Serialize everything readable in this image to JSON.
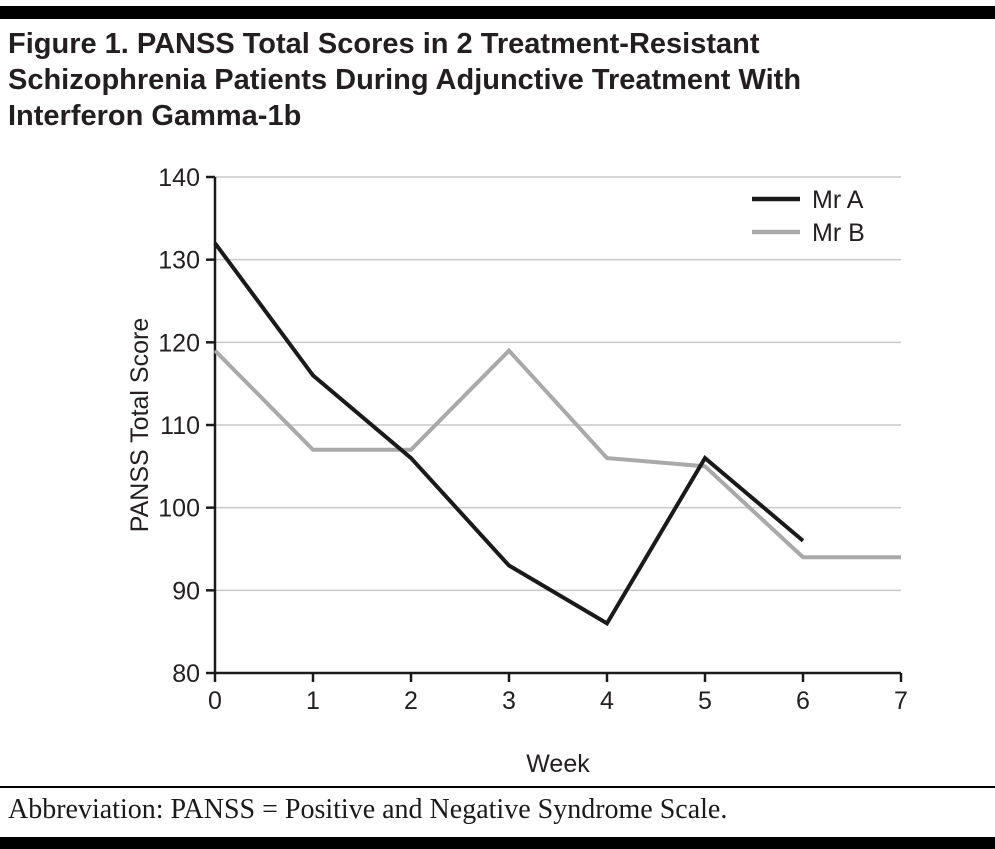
{
  "figure": {
    "title_lines": [
      "Figure 1. PANSS Total Scores in 2 Treatment-Resistant",
      "Schizophrenia Patients During Adjunctive Treatment With",
      "Interferon Gamma-1b"
    ],
    "footnote": "Abbreviation: PANSS = Positive and Negative Syndrome Scale."
  },
  "colors": {
    "rule": "#000000",
    "axis": "#1a1a1a",
    "grid": "#c9c9c9",
    "text": "#231f20"
  },
  "chart_data": {
    "type": "line",
    "title": "",
    "xlabel": "Week",
    "ylabel": "PANSS Total Score",
    "xlim": [
      0,
      7
    ],
    "ylim": [
      80,
      140
    ],
    "xticks": [
      0,
      1,
      2,
      3,
      4,
      5,
      6,
      7
    ],
    "yticks": [
      80,
      90,
      100,
      110,
      120,
      130,
      140
    ],
    "grid": "horizontal",
    "legend_position": "top-right",
    "series": [
      {
        "name": "Mr A",
        "color": "#1a1a1a",
        "x": [
          0,
          1,
          2,
          3,
          4,
          5,
          6
        ],
        "values": [
          132,
          116,
          106,
          93,
          86,
          106,
          96
        ]
      },
      {
        "name": "Mr B",
        "color": "#a9a9a9",
        "x": [
          0,
          1,
          2,
          3,
          4,
          5,
          6,
          7
        ],
        "values": [
          119,
          107,
          107,
          119,
          106,
          105,
          94,
          94
        ]
      }
    ]
  }
}
